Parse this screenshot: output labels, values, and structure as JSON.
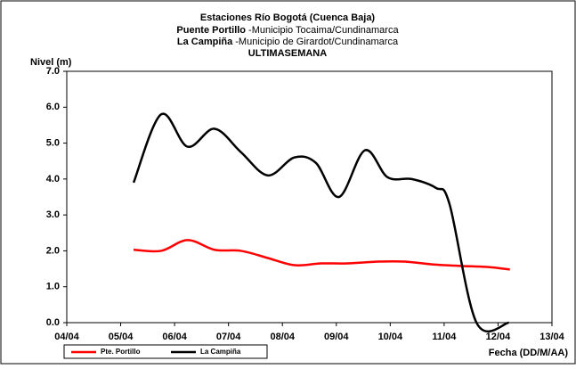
{
  "chart_data": {
    "type": "line",
    "title": "Estaciones Río Bogotá (Cuenca Baja)",
    "subtitle_1": {
      "bold": "Puente Portillo",
      "text": "-Municipio Tocaima/Cundinamarca"
    },
    "subtitle_2": {
      "bold": "La Campiña",
      "text": "-Municipio de Girardot/Cundinamarca"
    },
    "subtitle_3": "ULTIMASEMANA",
    "y_label": "Nivel (m)",
    "x_label": "Fecha (DD/M/AA)",
    "xlim": [
      0,
      9
    ],
    "xticks": [
      {
        "value": 0,
        "label": "04/04"
      },
      {
        "value": 1,
        "label": "05/04"
      },
      {
        "value": 2,
        "label": "06/04"
      },
      {
        "value": 3,
        "label": "07/04"
      },
      {
        "value": 4,
        "label": "08/04"
      },
      {
        "value": 5,
        "label": "09/04"
      },
      {
        "value": 6,
        "label": "10/04"
      },
      {
        "value": 7,
        "label": "11/04"
      },
      {
        "value": 8,
        "label": "12/04"
      },
      {
        "value": 9,
        "label": "13/04"
      }
    ],
    "ylim": [
      0,
      7
    ],
    "yticks": [
      {
        "value": 0,
        "label": "0.0"
      },
      {
        "value": 1,
        "label": "1.0"
      },
      {
        "value": 2,
        "label": "2.0"
      },
      {
        "value": 3,
        "label": "3.0"
      },
      {
        "value": 4,
        "label": "4.0"
      },
      {
        "value": 5,
        "label": "5.0"
      },
      {
        "value": 6,
        "label": "6.0"
      },
      {
        "value": 7,
        "label": "7.0"
      }
    ],
    "legend": "bottom-left",
    "series": [
      {
        "name": "Pte. Portillo",
        "color": "#ff0000",
        "x": [
          1.24,
          1.75,
          2.24,
          2.74,
          3.23,
          3.73,
          4.22,
          4.72,
          5.21,
          5.78,
          6.27,
          6.8,
          7.3,
          7.8,
          8.22
        ],
        "values": [
          2.03,
          2.0,
          2.3,
          2.03,
          2.0,
          1.8,
          1.6,
          1.65,
          1.65,
          1.7,
          1.7,
          1.62,
          1.58,
          1.55,
          1.48
        ]
      },
      {
        "name": "La Campiña",
        "color": "#000000",
        "x": [
          1.24,
          1.75,
          2.24,
          2.74,
          3.23,
          3.73,
          4.22,
          4.62,
          5.05,
          5.53,
          5.95,
          6.4,
          6.85,
          7.1,
          7.6,
          8.2
        ],
        "values": [
          3.9,
          5.8,
          4.9,
          5.4,
          4.75,
          4.1,
          4.6,
          4.45,
          3.5,
          4.8,
          4.05,
          4.0,
          3.75,
          3.3,
          0,
          0
        ]
      }
    ]
  }
}
